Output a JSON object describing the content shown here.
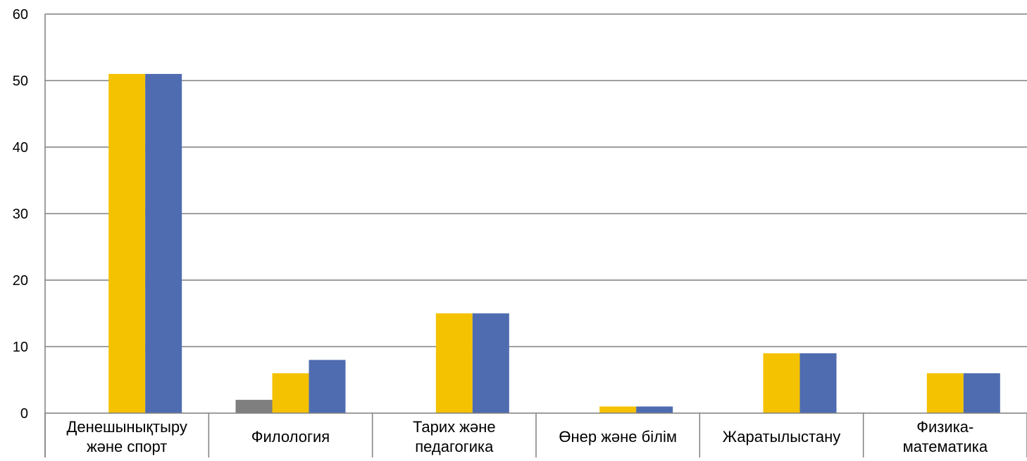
{
  "chart_data": {
    "type": "bar",
    "categories": [
      [
        "Денешынықтыру",
        "және спорт"
      ],
      [
        "Филология"
      ],
      [
        "Тарих және",
        "педагогика"
      ],
      [
        "Өнер және білім"
      ],
      [
        "Жаратылыстану"
      ],
      [
        "Физика-",
        "математика"
      ]
    ],
    "series": [
      {
        "color": "#7f7f7f",
        "values": [
          0,
          2,
          0,
          0,
          0,
          0
        ]
      },
      {
        "color": "#f4c200",
        "values": [
          51,
          6,
          15,
          1,
          9,
          6
        ]
      },
      {
        "color": "#4f6cb0",
        "values": [
          51,
          8,
          15,
          1,
          9,
          6
        ]
      }
    ],
    "ylim": [
      0,
      60
    ],
    "yticks": [
      0,
      10,
      20,
      30,
      40,
      50,
      60
    ],
    "grid": true,
    "title": "",
    "xlabel": "",
    "ylabel": ""
  }
}
